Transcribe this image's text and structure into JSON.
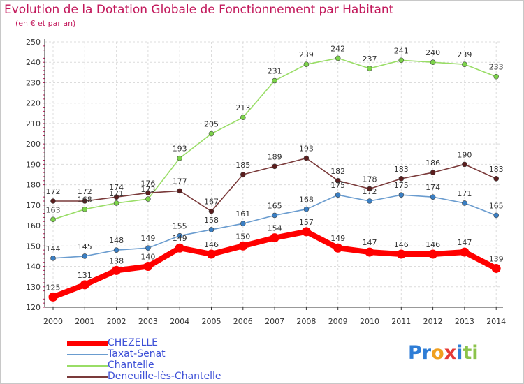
{
  "title": "Evolution de la Dotation Globale de Fonctionnement par Habitant",
  "subtitle": "(en € et par an)",
  "logo": {
    "letters": [
      {
        "ch": "P",
        "color": "#2e7dd6"
      },
      {
        "ch": "r",
        "color": "#2e7dd6"
      },
      {
        "ch": "o",
        "color": "#f0a020"
      },
      {
        "ch": "x",
        "color": "#e53935"
      },
      {
        "ch": "i",
        "color": "#2e7dd6"
      },
      {
        "ch": "t",
        "color": "#8bc34a"
      },
      {
        "ch": "i",
        "color": "#8bc34a"
      }
    ]
  },
  "chart_data": {
    "type": "line",
    "title": "Evolution de la Dotation Globale de Fonctionnement par Habitant",
    "subtitle": "(en € et par an)",
    "x": [
      "2000",
      "2001",
      "2002",
      "2003",
      "2004",
      "2005",
      "2006",
      "2007",
      "2008",
      "2009",
      "2010",
      "2011",
      "2012",
      "2013",
      "2014"
    ],
    "ylim": [
      120,
      250
    ],
    "yticks": [
      120,
      130,
      140,
      150,
      160,
      170,
      180,
      190,
      200,
      210,
      220,
      230,
      240,
      250
    ],
    "grid": true,
    "legend_position": "bottom-left",
    "series": [
      {
        "name": "CHEZELLE",
        "color": "#ff0000",
        "marker": "#ff0000",
        "width": "thick",
        "values": [
          125,
          131,
          138,
          140,
          149,
          146,
          150,
          154,
          157,
          149,
          147,
          146,
          146,
          147,
          139
        ]
      },
      {
        "name": "Taxat-Senat",
        "color": "#6a9ccf",
        "marker": "#3a7fc4",
        "width": "thin",
        "values": [
          144,
          145,
          148,
          149,
          155,
          158,
          161,
          165,
          168,
          175,
          172,
          175,
          174,
          171,
          165
        ]
      },
      {
        "name": "Chantelle",
        "color": "#99dd66",
        "marker": "#7cd34a",
        "width": "thin",
        "values": [
          163,
          168,
          171,
          173,
          193,
          205,
          213,
          231,
          239,
          242,
          237,
          241,
          240,
          239,
          233
        ]
      },
      {
        "name": "Deneuille-lès-Chantelle",
        "color": "#7a3a3a",
        "marker": "#5a1e1e",
        "width": "thin",
        "values": [
          172,
          172,
          174,
          176,
          177,
          167,
          185,
          189,
          193,
          182,
          178,
          183,
          186,
          190,
          183
        ]
      }
    ],
    "data_labels": {
      "CHEZELLE": [
        "125",
        "131",
        "138",
        "140",
        "149",
        "146",
        "150",
        "154",
        "157",
        "149",
        "147",
        "146",
        "146",
        "147",
        "139"
      ],
      "Taxat-Senat": [
        "144",
        "145",
        "148",
        "149",
        "155",
        "158",
        "161",
        "165",
        "168",
        "175",
        "172",
        "175",
        "174",
        "171",
        "165"
      ],
      "Chantelle": [
        "163",
        "168",
        "171",
        "173",
        "193",
        "205",
        "213",
        "231",
        "239",
        "242",
        "237",
        "241",
        "240",
        "239",
        "233"
      ],
      "Deneuille-lès-Chantelle": [
        "172",
        "172",
        "174",
        "176",
        "177",
        "167",
        "185",
        "189",
        "193",
        "182",
        "178",
        "183",
        "186",
        "190",
        "183"
      ]
    }
  }
}
